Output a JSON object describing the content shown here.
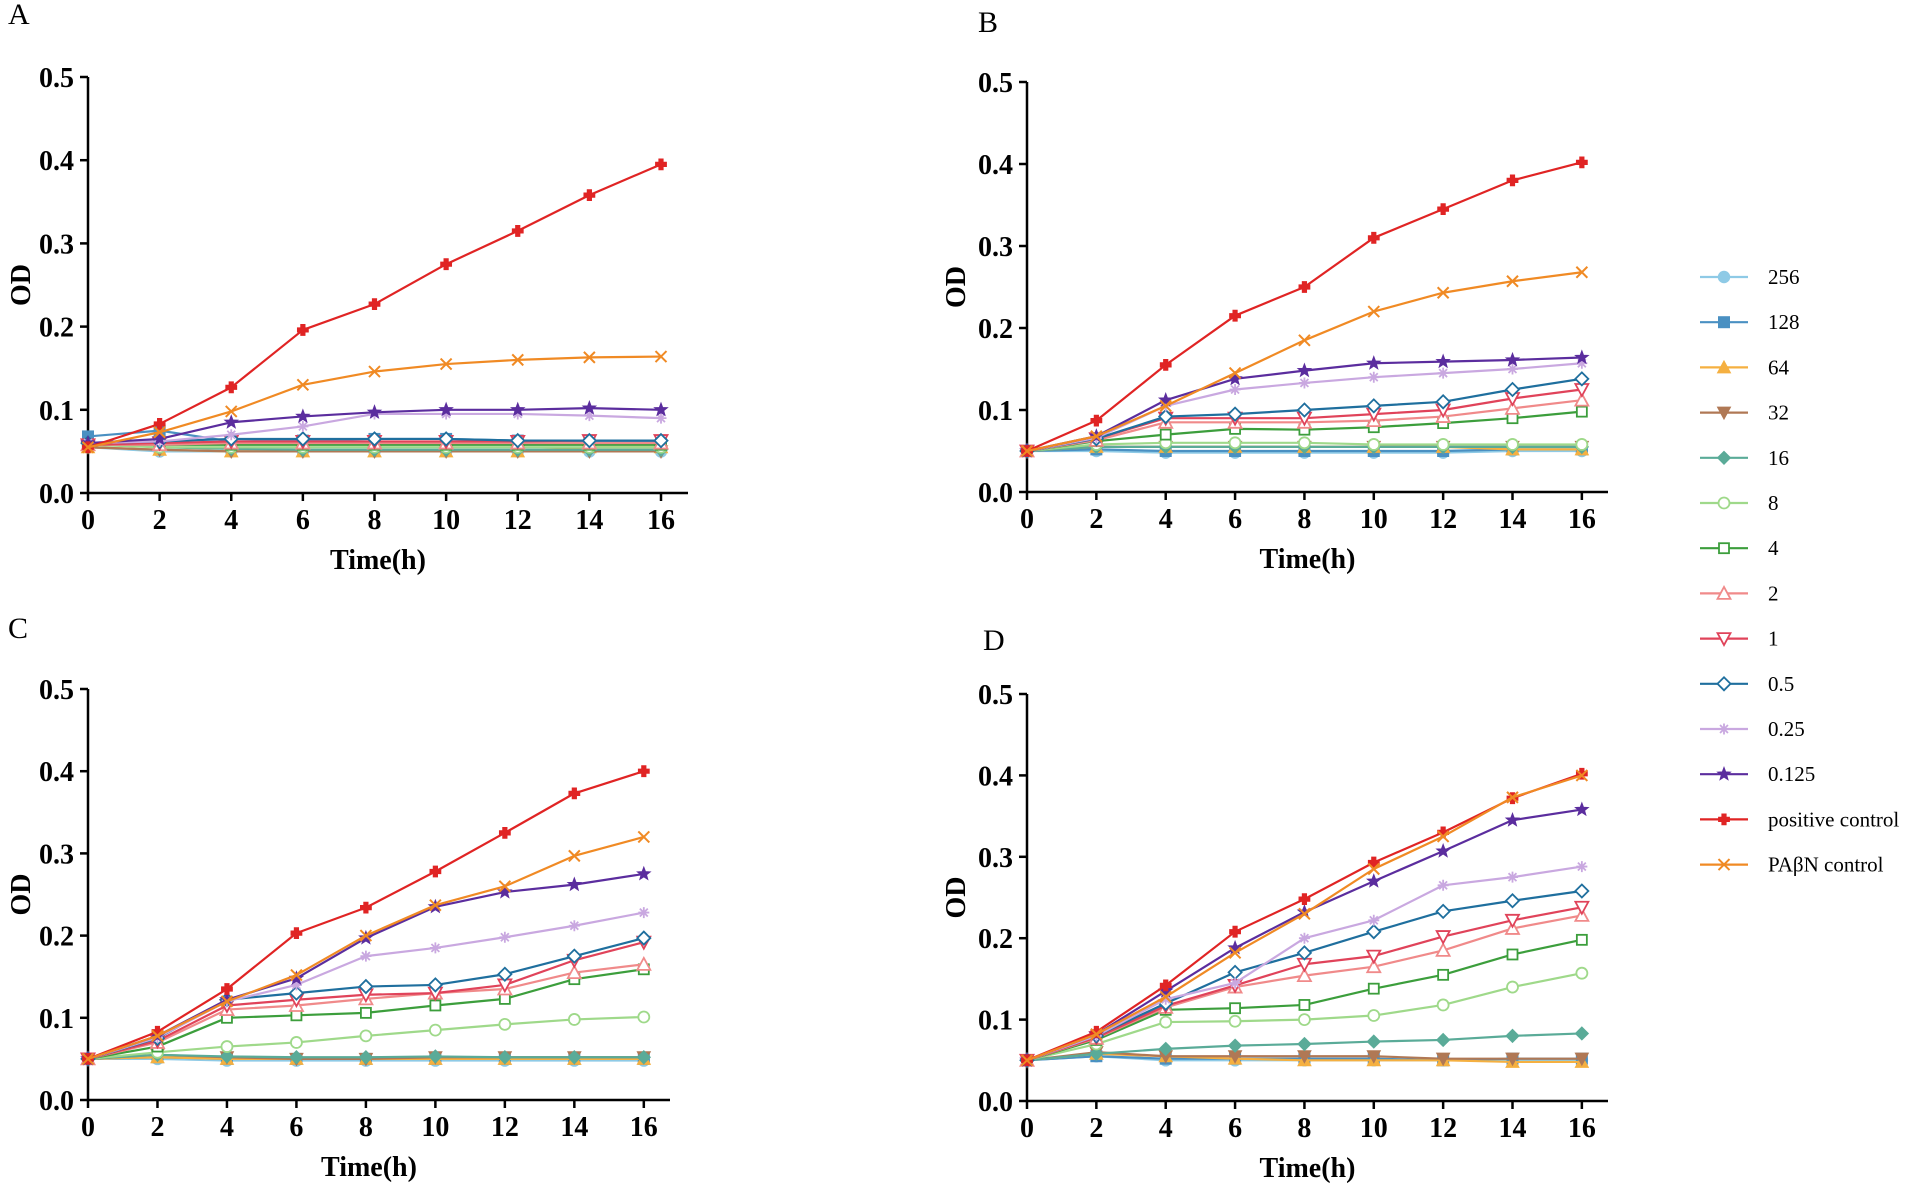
{
  "figure": {
    "series_styles": [
      {
        "name": "256",
        "color": "#8ecae6",
        "marker": "circle-filled"
      },
      {
        "name": "128",
        "color": "#4a90c2",
        "marker": "square-filled"
      },
      {
        "name": "64",
        "color": "#f5b041",
        "marker": "triangle-up-filled"
      },
      {
        "name": "32",
        "color": "#b07855",
        "marker": "triangle-down-filled"
      },
      {
        "name": "16",
        "color": "#5aab98",
        "marker": "diamond-filled"
      },
      {
        "name": "8",
        "color": "#9fd98a",
        "marker": "circle-open"
      },
      {
        "name": "4",
        "color": "#3c9e3c",
        "marker": "square-open"
      },
      {
        "name": "2",
        "color": "#f08a8a",
        "marker": "triangle-up-open"
      },
      {
        "name": "1",
        "color": "#e0435a",
        "marker": "triangle-down-open"
      },
      {
        "name": "0.5",
        "color": "#1f6f9e",
        "marker": "diamond-open"
      },
      {
        "name": "0.25",
        "color": "#c9a8e0",
        "marker": "asterisk"
      },
      {
        "name": "0.125",
        "color": "#5b2d9e",
        "marker": "star"
      },
      {
        "name": "positive control",
        "color": "#e02424",
        "marker": "cross-filled"
      },
      {
        "name": "PAβN control",
        "color": "#f08a24",
        "marker": "x"
      }
    ]
  },
  "legend": {
    "entries": [
      "256",
      "128",
      "64",
      "32",
      "16",
      "8",
      "4",
      "2",
      "1",
      "0.5",
      "0.25",
      "0.125",
      "positive control",
      "PAβN control"
    ]
  },
  "chart_data": [
    {
      "panel": "A",
      "type": "line",
      "xlabel": "Time(h)",
      "ylabel": "OD",
      "xlim": [
        0,
        16
      ],
      "ylim": [
        0,
        0.5
      ],
      "xticks": [
        "0",
        "2",
        "4",
        "6",
        "8",
        "10",
        "12",
        "14",
        "16"
      ],
      "yticks": [
        "0.0",
        "0.1",
        "0.2",
        "0.3",
        "0.4",
        "0.5"
      ],
      "x": [
        0,
        2,
        4,
        6,
        8,
        10,
        12,
        14,
        16
      ],
      "series": [
        {
          "name": "256",
          "values": [
            0.055,
            0.05,
            0.05,
            0.05,
            0.05,
            0.05,
            0.05,
            0.05,
            0.05
          ]
        },
        {
          "name": "128",
          "values": [
            0.068,
            0.075,
            0.062,
            0.063,
            0.065,
            0.065,
            0.063,
            0.062,
            0.062
          ]
        },
        {
          "name": "64",
          "values": [
            0.055,
            0.052,
            0.05,
            0.05,
            0.05,
            0.05,
            0.05,
            0.055,
            0.055
          ]
        },
        {
          "name": "32",
          "values": [
            0.055,
            0.052,
            0.05,
            0.05,
            0.05,
            0.05,
            0.05,
            0.05,
            0.05
          ]
        },
        {
          "name": "16",
          "values": [
            0.06,
            0.055,
            0.053,
            0.052,
            0.052,
            0.052,
            0.052,
            0.052,
            0.052
          ]
        },
        {
          "name": "8",
          "values": [
            0.058,
            0.055,
            0.055,
            0.055,
            0.055,
            0.055,
            0.055,
            0.055,
            0.055
          ]
        },
        {
          "name": "4",
          "values": [
            0.058,
            0.058,
            0.058,
            0.058,
            0.058,
            0.058,
            0.058,
            0.058,
            0.058
          ]
        },
        {
          "name": "2",
          "values": [
            0.058,
            0.058,
            0.06,
            0.06,
            0.06,
            0.06,
            0.06,
            0.06,
            0.06
          ]
        },
        {
          "name": "1",
          "values": [
            0.058,
            0.06,
            0.062,
            0.062,
            0.062,
            0.062,
            0.062,
            0.063,
            0.063
          ]
        },
        {
          "name": "0.5",
          "values": [
            0.06,
            0.062,
            0.065,
            0.065,
            0.065,
            0.065,
            0.063,
            0.063,
            0.063
          ]
        },
        {
          "name": "0.25",
          "values": [
            0.06,
            0.062,
            0.07,
            0.08,
            0.095,
            0.095,
            0.095,
            0.093,
            0.09
          ]
        },
        {
          "name": "0.125",
          "values": [
            0.06,
            0.065,
            0.085,
            0.092,
            0.097,
            0.1,
            0.1,
            0.102,
            0.1
          ]
        },
        {
          "name": "positive control",
          "values": [
            0.055,
            0.083,
            0.127,
            0.196,
            0.227,
            0.275,
            0.315,
            0.358,
            0.395
          ]
        },
        {
          "name": "PAβN control",
          "values": [
            0.055,
            0.073,
            0.098,
            0.13,
            0.146,
            0.155,
            0.16,
            0.163,
            0.164
          ]
        }
      ]
    },
    {
      "panel": "B",
      "type": "line",
      "xlabel": "Time(h)",
      "ylabel": "OD",
      "xlim": [
        0,
        16
      ],
      "ylim": [
        0,
        0.5
      ],
      "xticks": [
        "0",
        "2",
        "4",
        "6",
        "8",
        "10",
        "12",
        "14",
        "16"
      ],
      "yticks": [
        "0.0",
        "0.1",
        "0.2",
        "0.3",
        "0.4",
        "0.5"
      ],
      "x": [
        0,
        2,
        4,
        6,
        8,
        10,
        12,
        14,
        16
      ],
      "series": [
        {
          "name": "256",
          "values": [
            0.05,
            0.05,
            0.048,
            0.048,
            0.048,
            0.048,
            0.048,
            0.05,
            0.05
          ]
        },
        {
          "name": "128",
          "values": [
            0.05,
            0.052,
            0.05,
            0.05,
            0.05,
            0.05,
            0.05,
            0.052,
            0.052
          ]
        },
        {
          "name": "64",
          "values": [
            0.05,
            0.055,
            0.055,
            0.055,
            0.055,
            0.055,
            0.055,
            0.052,
            0.052
          ]
        },
        {
          "name": "32",
          "values": [
            0.05,
            0.055,
            0.055,
            0.055,
            0.055,
            0.055,
            0.055,
            0.055,
            0.055
          ]
        },
        {
          "name": "16",
          "values": [
            0.05,
            0.055,
            0.055,
            0.055,
            0.055,
            0.055,
            0.055,
            0.055,
            0.055
          ]
        },
        {
          "name": "8",
          "values": [
            0.05,
            0.058,
            0.06,
            0.06,
            0.06,
            0.058,
            0.058,
            0.058,
            0.058
          ]
        },
        {
          "name": "4",
          "values": [
            0.05,
            0.062,
            0.07,
            0.077,
            0.076,
            0.079,
            0.084,
            0.09,
            0.098
          ]
        },
        {
          "name": "2",
          "values": [
            0.05,
            0.063,
            0.085,
            0.085,
            0.085,
            0.087,
            0.092,
            0.102,
            0.112
          ]
        },
        {
          "name": "1",
          "values": [
            0.05,
            0.065,
            0.09,
            0.09,
            0.09,
            0.095,
            0.1,
            0.114,
            0.125
          ]
        },
        {
          "name": "0.5",
          "values": [
            0.05,
            0.065,
            0.092,
            0.095,
            0.1,
            0.105,
            0.11,
            0.125,
            0.138
          ]
        },
        {
          "name": "0.25",
          "values": [
            0.05,
            0.066,
            0.105,
            0.125,
            0.133,
            0.14,
            0.145,
            0.15,
            0.157
          ]
        },
        {
          "name": "0.125",
          "values": [
            0.05,
            0.068,
            0.112,
            0.138,
            0.148,
            0.157,
            0.159,
            0.161,
            0.164
          ]
        },
        {
          "name": "positive control",
          "values": [
            0.05,
            0.087,
            0.155,
            0.215,
            0.25,
            0.31,
            0.345,
            0.38,
            0.402
          ]
        },
        {
          "name": "PAβN control",
          "values": [
            0.05,
            0.068,
            0.105,
            0.145,
            0.185,
            0.22,
            0.243,
            0.257,
            0.268
          ]
        }
      ]
    },
    {
      "panel": "C",
      "type": "line",
      "xlabel": "Time(h)",
      "ylabel": "OD",
      "xlim": [
        0,
        16
      ],
      "ylim": [
        0,
        0.5
      ],
      "xticks": [
        "0",
        "2",
        "4",
        "6",
        "8",
        "10",
        "12",
        "14",
        "16"
      ],
      "yticks": [
        "0.0",
        "0.1",
        "0.2",
        "0.3",
        "0.4",
        "0.5"
      ],
      "x": [
        0,
        2,
        4,
        6,
        8,
        10,
        12,
        14,
        16
      ],
      "series": [
        {
          "name": "256",
          "values": [
            0.05,
            0.05,
            0.048,
            0.048,
            0.048,
            0.048,
            0.048,
            0.048,
            0.048
          ]
        },
        {
          "name": "128",
          "values": [
            0.05,
            0.052,
            0.05,
            0.05,
            0.05,
            0.05,
            0.05,
            0.05,
            0.05
          ]
        },
        {
          "name": "64",
          "values": [
            0.05,
            0.052,
            0.05,
            0.05,
            0.05,
            0.05,
            0.05,
            0.05,
            0.05
          ]
        },
        {
          "name": "32",
          "values": [
            0.05,
            0.055,
            0.052,
            0.05,
            0.05,
            0.052,
            0.052,
            0.052,
            0.052
          ]
        },
        {
          "name": "16",
          "values": [
            0.05,
            0.055,
            0.053,
            0.052,
            0.052,
            0.053,
            0.052,
            0.052,
            0.052
          ]
        },
        {
          "name": "8",
          "values": [
            0.05,
            0.058,
            0.065,
            0.07,
            0.078,
            0.085,
            0.092,
            0.098,
            0.101
          ]
        },
        {
          "name": "4",
          "values": [
            0.05,
            0.065,
            0.1,
            0.103,
            0.106,
            0.115,
            0.123,
            0.147,
            0.159
          ]
        },
        {
          "name": "2",
          "values": [
            0.05,
            0.07,
            0.11,
            0.115,
            0.123,
            0.13,
            0.135,
            0.155,
            0.165
          ]
        },
        {
          "name": "1",
          "values": [
            0.05,
            0.072,
            0.115,
            0.122,
            0.128,
            0.13,
            0.14,
            0.17,
            0.192
          ]
        },
        {
          "name": "0.5",
          "values": [
            0.05,
            0.075,
            0.122,
            0.13,
            0.138,
            0.14,
            0.153,
            0.175,
            0.197
          ]
        },
        {
          "name": "0.25",
          "values": [
            0.05,
            0.076,
            0.12,
            0.14,
            0.175,
            0.185,
            0.198,
            0.212,
            0.228
          ]
        },
        {
          "name": "0.125",
          "values": [
            0.05,
            0.078,
            0.122,
            0.148,
            0.197,
            0.235,
            0.253,
            0.262,
            0.275
          ]
        },
        {
          "name": "positive control",
          "values": [
            0.05,
            0.083,
            0.135,
            0.203,
            0.234,
            0.278,
            0.325,
            0.373,
            0.4
          ]
        },
        {
          "name": "PAβN control",
          "values": [
            0.05,
            0.078,
            0.12,
            0.152,
            0.2,
            0.237,
            0.26,
            0.297,
            0.32
          ]
        }
      ]
    },
    {
      "panel": "D",
      "type": "line",
      "xlabel": "Time(h)",
      "ylabel": "OD",
      "xlim": [
        0,
        16
      ],
      "ylim": [
        0,
        0.5
      ],
      "xticks": [
        "0",
        "2",
        "4",
        "6",
        "8",
        "10",
        "12",
        "14",
        "16"
      ],
      "yticks": [
        "0.0",
        "0.1",
        "0.2",
        "0.3",
        "0.4",
        "0.5"
      ],
      "x": [
        0,
        2,
        4,
        6,
        8,
        10,
        12,
        14,
        16
      ],
      "series": [
        {
          "name": "256",
          "values": [
            0.05,
            0.055,
            0.05,
            0.05,
            0.05,
            0.05,
            0.05,
            0.05,
            0.05
          ]
        },
        {
          "name": "128",
          "values": [
            0.05,
            0.055,
            0.052,
            0.052,
            0.052,
            0.052,
            0.05,
            0.052,
            0.052
          ]
        },
        {
          "name": "64",
          "values": [
            0.05,
            0.058,
            0.055,
            0.052,
            0.05,
            0.05,
            0.05,
            0.048,
            0.048
          ]
        },
        {
          "name": "32",
          "values": [
            0.05,
            0.06,
            0.055,
            0.055,
            0.055,
            0.055,
            0.052,
            0.052,
            0.052
          ]
        },
        {
          "name": "16",
          "values": [
            0.05,
            0.058,
            0.064,
            0.068,
            0.07,
            0.073,
            0.075,
            0.08,
            0.083
          ]
        },
        {
          "name": "8",
          "values": [
            0.05,
            0.07,
            0.097,
            0.098,
            0.1,
            0.105,
            0.118,
            0.14,
            0.157
          ]
        },
        {
          "name": "4",
          "values": [
            0.05,
            0.075,
            0.112,
            0.114,
            0.118,
            0.138,
            0.155,
            0.18,
            0.198
          ]
        },
        {
          "name": "2",
          "values": [
            0.05,
            0.077,
            0.115,
            0.14,
            0.154,
            0.165,
            0.185,
            0.212,
            0.228
          ]
        },
        {
          "name": "1",
          "values": [
            0.05,
            0.078,
            0.117,
            0.142,
            0.168,
            0.178,
            0.202,
            0.222,
            0.238
          ]
        },
        {
          "name": "0.5",
          "values": [
            0.05,
            0.08,
            0.12,
            0.158,
            0.182,
            0.208,
            0.233,
            0.246,
            0.258
          ]
        },
        {
          "name": "0.25",
          "values": [
            0.05,
            0.08,
            0.125,
            0.145,
            0.2,
            0.222,
            0.265,
            0.275,
            0.288
          ]
        },
        {
          "name": "0.125",
          "values": [
            0.05,
            0.082,
            0.135,
            0.188,
            0.232,
            0.27,
            0.307,
            0.345,
            0.358
          ]
        },
        {
          "name": "positive control",
          "values": [
            0.05,
            0.085,
            0.142,
            0.208,
            0.248,
            0.293,
            0.33,
            0.372,
            0.402
          ]
        },
        {
          "name": "PAβN control",
          "values": [
            0.05,
            0.082,
            0.128,
            0.182,
            0.23,
            0.285,
            0.325,
            0.373,
            0.4
          ]
        }
      ]
    }
  ]
}
